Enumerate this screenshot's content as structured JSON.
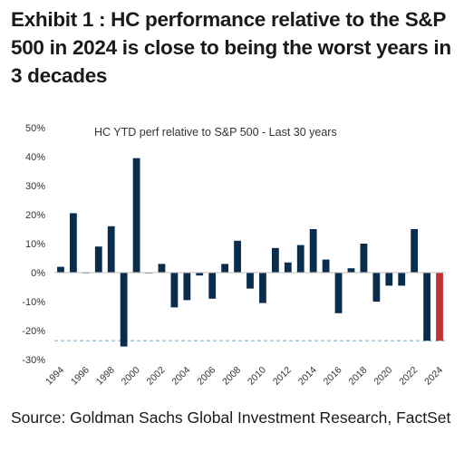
{
  "exhibit": {
    "title": "Exhibit 1 : HC performance relative to the S&P 500 in 2024 is close to being the worst years in 3 decades"
  },
  "source": "Source: Goldman Sachs Global Investment Research, FactSet",
  "colors": {
    "bar": "#0b2d4d",
    "highlight": "#c0313a",
    "reference_line": "#9fc7db",
    "axis": "#bfbfbf",
    "text": "#333333"
  },
  "chart_data": {
    "type": "bar",
    "title": "HC YTD perf relative to S&P 500 -  Last 30 years",
    "xlabel": "",
    "ylabel": "",
    "ylim": [
      -30,
      50
    ],
    "ytick_labels": [
      "50%",
      "40%",
      "30%",
      "20%",
      "10%",
      "0%",
      "-10%",
      "-20%",
      "-30%"
    ],
    "yticks": [
      50,
      40,
      30,
      20,
      10,
      0,
      -10,
      -20,
      -30
    ],
    "categories": [
      "1994",
      "1995",
      "1996",
      "1997",
      "1998",
      "1999",
      "2000",
      "2001",
      "2002",
      "2003",
      "2004",
      "2005",
      "2006",
      "2007",
      "2008",
      "2009",
      "2010",
      "2011",
      "2012",
      "2013",
      "2014",
      "2015",
      "2016",
      "2017",
      "2018",
      "2019",
      "2020",
      "2021",
      "2022",
      "2023",
      "2024"
    ],
    "xtick_labels": [
      "1994",
      "1996",
      "1998",
      "2000",
      "2002",
      "2004",
      "2006",
      "2008",
      "2010",
      "2012",
      "2014",
      "2016",
      "2018",
      "2020",
      "2022",
      "2024"
    ],
    "values": [
      2,
      20.5,
      0,
      9,
      16,
      -25.5,
      39.5,
      0,
      3,
      -12,
      -9.5,
      -1,
      -9,
      3,
      11,
      -5.5,
      -10.5,
      8.5,
      3.5,
      9.5,
      15,
      4.5,
      -14,
      1.5,
      10,
      -10,
      -4.5,
      -4.5,
      15,
      -23.5,
      -23.5
    ],
    "highlight_category": "2024",
    "reference_line_value": -23.5,
    "grid": false,
    "legend": "none"
  }
}
